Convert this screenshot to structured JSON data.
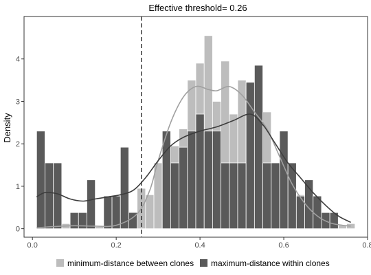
{
  "chart_data": {
    "type": "histogram",
    "title": "Effective threshold= 0.26",
    "xlabel": "",
    "ylabel": "Density",
    "xlim": [
      -0.02,
      0.8
    ],
    "ylim": [
      -0.2,
      5.0
    ],
    "x_ticks": [
      0.0,
      0.2,
      0.4,
      0.6,
      0.8
    ],
    "x_tick_labels": [
      "0.0",
      "0.2",
      "0.4",
      "0.6",
      "0.8"
    ],
    "y_ticks": [
      0,
      1,
      2,
      3,
      4
    ],
    "y_tick_labels": [
      "0",
      "1",
      "2",
      "3",
      "4"
    ],
    "grid": false,
    "threshold": 0.26,
    "legend_position": "bottom",
    "bin_width": 0.02,
    "colors": {
      "min_distance": "#bdbdbd",
      "max_distance": "#5a5a5a",
      "min_curve": "#a0a0a0",
      "max_curve": "#3d3d3d"
    },
    "series": [
      {
        "name": "minimum-distance between clones",
        "bins": [
          {
            "x": 0.02,
            "density": 0.05
          },
          {
            "x": 0.04,
            "density": 0.12
          },
          {
            "x": 0.06,
            "density": 0.12
          },
          {
            "x": 0.08,
            "density": 0.12
          },
          {
            "x": 0.12,
            "density": 0.1
          },
          {
            "x": 0.14,
            "density": 0.15
          },
          {
            "x": 0.16,
            "density": 0.05
          },
          {
            "x": 0.18,
            "density": 0.05
          },
          {
            "x": 0.2,
            "density": 0.05
          },
          {
            "x": 0.22,
            "density": 0.15
          },
          {
            "x": 0.24,
            "density": 0.4
          },
          {
            "x": 0.26,
            "density": 0.95
          },
          {
            "x": 0.28,
            "density": 0.8
          },
          {
            "x": 0.3,
            "density": 1.55
          },
          {
            "x": 0.32,
            "density": 1.55
          },
          {
            "x": 0.34,
            "density": 1.95
          },
          {
            "x": 0.36,
            "density": 2.35
          },
          {
            "x": 0.38,
            "density": 3.5
          },
          {
            "x": 0.4,
            "density": 3.9
          },
          {
            "x": 0.42,
            "density": 4.55
          },
          {
            "x": 0.44,
            "density": 3.0
          },
          {
            "x": 0.46,
            "density": 3.95
          },
          {
            "x": 0.48,
            "density": 2.7
          },
          {
            "x": 0.5,
            "density": 3.5
          },
          {
            "x": 0.52,
            "density": 3.35
          },
          {
            "x": 0.54,
            "density": 2.55
          },
          {
            "x": 0.56,
            "density": 2.75
          },
          {
            "x": 0.58,
            "density": 1.55
          },
          {
            "x": 0.6,
            "density": 1.2
          },
          {
            "x": 0.62,
            "density": 0.75
          },
          {
            "x": 0.64,
            "density": 0.8
          },
          {
            "x": 0.66,
            "density": 0.38
          },
          {
            "x": 0.68,
            "density": 0.38
          },
          {
            "x": 0.7,
            "density": 0.2
          },
          {
            "x": 0.72,
            "density": 0.12
          },
          {
            "x": 0.74,
            "density": 0.08
          },
          {
            "x": 0.76,
            "density": 0.12
          }
        ],
        "density_curve": [
          [
            0.01,
            0.02
          ],
          [
            0.05,
            0.05
          ],
          [
            0.1,
            0.07
          ],
          [
            0.15,
            0.06
          ],
          [
            0.2,
            0.08
          ],
          [
            0.25,
            0.35
          ],
          [
            0.28,
            0.9
          ],
          [
            0.3,
            1.6
          ],
          [
            0.33,
            2.5
          ],
          [
            0.36,
            3.1
          ],
          [
            0.39,
            3.35
          ],
          [
            0.42,
            3.28
          ],
          [
            0.44,
            3.25
          ],
          [
            0.47,
            3.35
          ],
          [
            0.5,
            3.15
          ],
          [
            0.53,
            2.75
          ],
          [
            0.56,
            2.35
          ],
          [
            0.59,
            1.7
          ],
          [
            0.62,
            1.05
          ],
          [
            0.65,
            0.6
          ],
          [
            0.68,
            0.3
          ],
          [
            0.71,
            0.14
          ],
          [
            0.74,
            0.08
          ],
          [
            0.76,
            0.06
          ]
        ]
      },
      {
        "name": "maximum-distance within clones",
        "bins": [
          {
            "x": 0.02,
            "density": 2.3
          },
          {
            "x": 0.04,
            "density": 1.55
          },
          {
            "x": 0.06,
            "density": 1.55
          },
          {
            "x": 0.1,
            "density": 0.38
          },
          {
            "x": 0.12,
            "density": 0.38
          },
          {
            "x": 0.14,
            "density": 1.15
          },
          {
            "x": 0.18,
            "density": 0.77
          },
          {
            "x": 0.2,
            "density": 0.77
          },
          {
            "x": 0.22,
            "density": 1.92
          },
          {
            "x": 0.24,
            "density": 0.38
          },
          {
            "x": 0.32,
            "density": 2.3
          },
          {
            "x": 0.34,
            "density": 1.55
          },
          {
            "x": 0.36,
            "density": 1.92
          },
          {
            "x": 0.38,
            "density": 2.3
          },
          {
            "x": 0.4,
            "density": 2.7
          },
          {
            "x": 0.42,
            "density": 2.3
          },
          {
            "x": 0.44,
            "density": 2.3
          },
          {
            "x": 0.46,
            "density": 1.55
          },
          {
            "x": 0.48,
            "density": 1.55
          },
          {
            "x": 0.5,
            "density": 1.55
          },
          {
            "x": 0.52,
            "density": 3.45
          },
          {
            "x": 0.54,
            "density": 3.85
          },
          {
            "x": 0.56,
            "density": 1.55
          },
          {
            "x": 0.58,
            "density": 1.55
          },
          {
            "x": 0.6,
            "density": 2.3
          },
          {
            "x": 0.62,
            "density": 1.55
          },
          {
            "x": 0.64,
            "density": 0.77
          },
          {
            "x": 0.66,
            "density": 1.15
          },
          {
            "x": 0.68,
            "density": 0.77
          },
          {
            "x": 0.7,
            "density": 0.38
          },
          {
            "x": 0.72,
            "density": 0.38
          }
        ],
        "density_curve": [
          [
            0.01,
            0.75
          ],
          [
            0.03,
            0.85
          ],
          [
            0.06,
            0.82
          ],
          [
            0.09,
            0.7
          ],
          [
            0.12,
            0.65
          ],
          [
            0.15,
            0.7
          ],
          [
            0.18,
            0.75
          ],
          [
            0.21,
            0.8
          ],
          [
            0.24,
            0.9
          ],
          [
            0.27,
            1.2
          ],
          [
            0.3,
            1.6
          ],
          [
            0.33,
            1.95
          ],
          [
            0.36,
            2.15
          ],
          [
            0.4,
            2.3
          ],
          [
            0.44,
            2.4
          ],
          [
            0.48,
            2.55
          ],
          [
            0.52,
            2.7
          ],
          [
            0.55,
            2.45
          ],
          [
            0.58,
            2.0
          ],
          [
            0.61,
            1.55
          ],
          [
            0.64,
            1.2
          ],
          [
            0.67,
            0.85
          ],
          [
            0.7,
            0.55
          ],
          [
            0.73,
            0.3
          ],
          [
            0.76,
            0.15
          ]
        ]
      }
    ]
  }
}
